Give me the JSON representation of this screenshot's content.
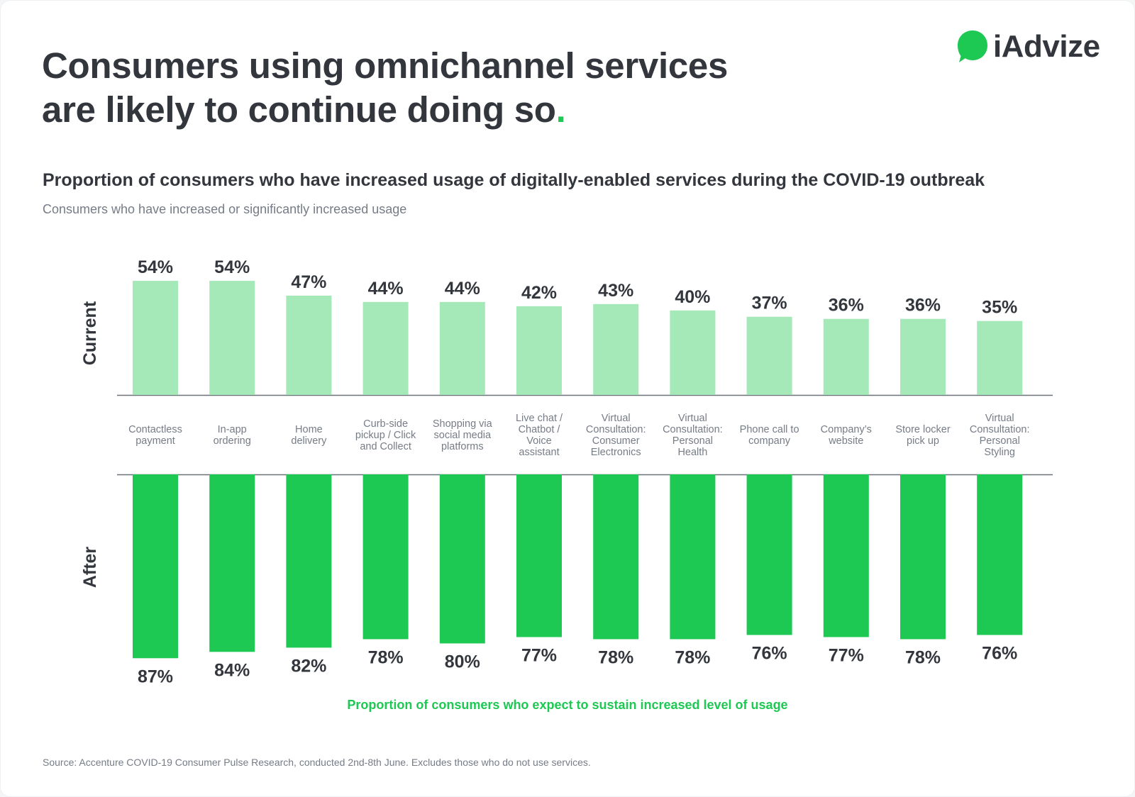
{
  "header": {
    "title_line1": "Consumers using omnichannel services",
    "title_line2": "are likely to continue doing so",
    "title_dot": ".",
    "logo_text": "iAdvize",
    "subtitle": "Proportion of consumers who have increased usage of digitally-enabled services during the COVID-19 outbreak",
    "subnote": "Consumers who have increased or significantly increased usage"
  },
  "colors": {
    "current_bar": "#a5e9b9",
    "after_bar": "#1dc853",
    "text_dark": "#33373d",
    "text_muted": "#767c86",
    "axis": "#6b7079",
    "brand_green": "#1dc853"
  },
  "chart_data": {
    "type": "bar",
    "title": "Proportion of consumers who have increased usage of digitally-enabled services during the COVID-19 outbreak",
    "subtitle": "Consumers who have increased or significantly increased usage",
    "categories": [
      [
        "Contactless",
        "payment"
      ],
      [
        "In-app",
        "ordering"
      ],
      [
        "Home",
        "delivery"
      ],
      [
        "Curb-side",
        "pickup / Click",
        "and Collect"
      ],
      [
        "Shopping via",
        "social media",
        "platforms"
      ],
      [
        "Live chat /",
        "Chatbot /",
        "Voice",
        "assistant"
      ],
      [
        "Virtual",
        "Consultation:",
        "Consumer",
        "Electronics"
      ],
      [
        "Virtual",
        "Consultation:",
        "Personal",
        "Health"
      ],
      [
        "Phone call to",
        "company"
      ],
      [
        "Company’s",
        "website"
      ],
      [
        "Store locker",
        "pick up"
      ],
      [
        "Virtual",
        "Consultation:",
        "Personal",
        "Styling"
      ]
    ],
    "series": [
      {
        "name": "Current",
        "direction": "up",
        "values": [
          54,
          54,
          47,
          44,
          44,
          42,
          43,
          40,
          37,
          36,
          36,
          35
        ],
        "labels": [
          "54%",
          "54%",
          "47%",
          "44%",
          "44%",
          "42%",
          "43%",
          "40%",
          "37%",
          "36%",
          "36%",
          "35%"
        ]
      },
      {
        "name": "After",
        "direction": "down",
        "values": [
          87,
          84,
          82,
          78,
          80,
          77,
          78,
          78,
          76,
          77,
          78,
          76
        ],
        "labels": [
          "87%",
          "84%",
          "82%",
          "78%",
          "80%",
          "77%",
          "78%",
          "78%",
          "76%",
          "77%",
          "78%",
          "76%"
        ]
      }
    ],
    "unit": "%",
    "ylim": [
      0,
      100
    ],
    "grid": false,
    "legend": "none",
    "bottom_caption": "Proportion of consumers who expect to sustain increased level of usage"
  },
  "footer": {
    "source": "Source: Accenture COVID-19 Consumer Pulse Research, conducted 2nd-8th June. Excludes those who do not use services."
  }
}
